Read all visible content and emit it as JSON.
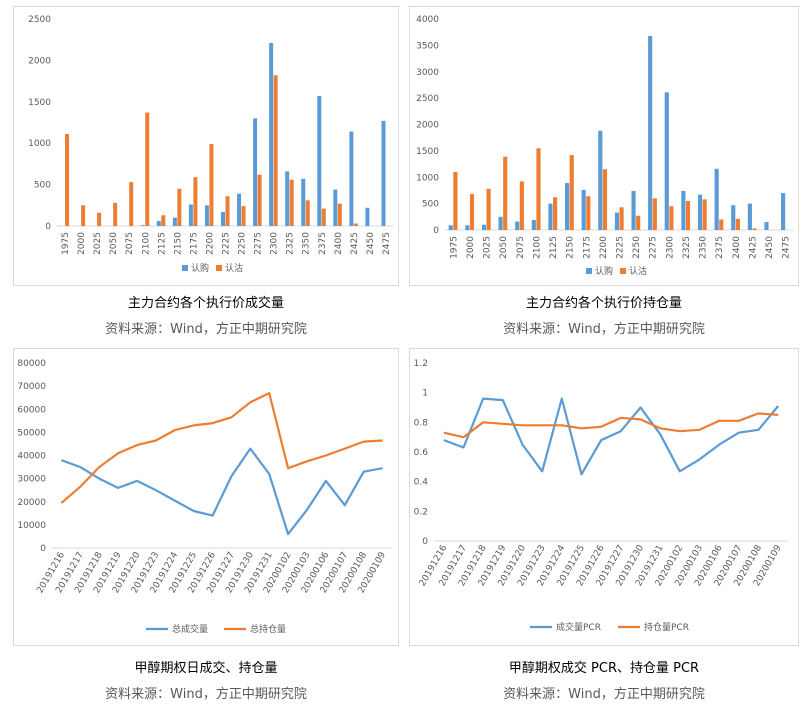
{
  "panels": [
    {
      "caption": "主力合约各个执行价成交量",
      "source": "资料来源：Wind，方正中期研究院"
    },
    {
      "caption": "主力合约各个执行价持仓量",
      "source": "资料来源：Wind，方正中期研究院"
    },
    {
      "caption": "甲醇期权日成交、持仓量",
      "source": "资料来源：Wind，方正中期研究院"
    },
    {
      "caption": "甲醇期权成交 PCR、持仓量 PCR",
      "source": "资料来源：Wind，方正中期研究院"
    }
  ],
  "chart_data": [
    {
      "type": "bar",
      "title": "",
      "categories": [
        "1975",
        "2000",
        "2025",
        "2050",
        "2075",
        "2100",
        "2125",
        "2150",
        "2175",
        "2200",
        "2225",
        "2250",
        "2275",
        "2300",
        "2325",
        "2350",
        "2375",
        "2400",
        "2425",
        "2450",
        "2475"
      ],
      "series": [
        {
          "name": "认购",
          "color": "#5b9bd5",
          "values": [
            0,
            0,
            0,
            0,
            0,
            10,
            60,
            100,
            260,
            250,
            170,
            390,
            1300,
            2210,
            660,
            570,
            1570,
            440,
            1140,
            220,
            1270
          ]
        },
        {
          "name": "认沽",
          "color": "#ed7d31",
          "values": [
            1110,
            250,
            160,
            280,
            530,
            1370,
            130,
            450,
            590,
            990,
            360,
            240,
            620,
            1820,
            560,
            310,
            210,
            270,
            30,
            0,
            0
          ]
        }
      ],
      "ylim": [
        0,
        2500
      ],
      "yticks": [
        "0",
        "500",
        "1000",
        "1500",
        "2000",
        "2500"
      ],
      "legend": "bottom",
      "grid": false
    },
    {
      "type": "bar",
      "title": "",
      "categories": [
        "1975",
        "2000",
        "2025",
        "2050",
        "2075",
        "2100",
        "2125",
        "2150",
        "2175",
        "2200",
        "2225",
        "2250",
        "2275",
        "2300",
        "2325",
        "2350",
        "2375",
        "2400",
        "2425",
        "2450",
        "2475"
      ],
      "series": [
        {
          "name": "认购",
          "color": "#5b9bd5",
          "values": [
            90,
            90,
            100,
            250,
            160,
            190,
            500,
            890,
            760,
            1880,
            330,
            740,
            3680,
            2610,
            740,
            670,
            1160,
            470,
            500,
            150,
            700
          ]
        },
        {
          "name": "认沽",
          "color": "#ed7d31",
          "values": [
            1100,
            680,
            780,
            1390,
            920,
            1550,
            620,
            1420,
            640,
            1150,
            430,
            270,
            600,
            450,
            550,
            580,
            200,
            210,
            30,
            0,
            0
          ]
        }
      ],
      "ylim": [
        0,
        4000
      ],
      "yticks": [
        "0",
        "500",
        "1000",
        "1500",
        "2000",
        "2500",
        "3000",
        "3500",
        "4000"
      ],
      "legend": "bottom",
      "grid": false
    },
    {
      "type": "line",
      "title": "",
      "x": [
        "20191216",
        "20191217",
        "20191218",
        "20191219",
        "20191220",
        "20191223",
        "20191224",
        "20191225",
        "20191226",
        "20191227",
        "20191230",
        "20191231",
        "20200102",
        "20200103",
        "20200106",
        "20200107",
        "20200108",
        "20200109"
      ],
      "series": [
        {
          "name": "总成交量",
          "color": "#5b9bd5",
          "values": [
            38000,
            35000,
            30000,
            26000,
            29000,
            25000,
            20500,
            16000,
            14000,
            31000,
            43000,
            32000,
            6000,
            16500,
            29000,
            18500,
            33000,
            34500
          ]
        },
        {
          "name": "总持仓量",
          "color": "#ed7d31",
          "values": [
            19500,
            26500,
            35000,
            41000,
            44500,
            46500,
            51000,
            53000,
            54000,
            56500,
            63000,
            67000,
            34500,
            37500,
            40000,
            43000,
            46000,
            46500
          ]
        }
      ],
      "ylim": [
        0,
        80000
      ],
      "yticks": [
        "0",
        "10000",
        "20000",
        "30000",
        "40000",
        "50000",
        "60000",
        "70000",
        "80000"
      ],
      "legend": "bottom",
      "grid": false
    },
    {
      "type": "line",
      "title": "",
      "x": [
        "20191216",
        "20191217",
        "20191218",
        "20191219",
        "20191220",
        "20191223",
        "20191224",
        "20191225",
        "20191226",
        "20191227",
        "20191230",
        "20191231",
        "20200102",
        "20200103",
        "20200106",
        "20200107",
        "20200108",
        "20200109"
      ],
      "series": [
        {
          "name": "成交量PCR",
          "color": "#5b9bd5",
          "values": [
            0.68,
            0.63,
            0.96,
            0.95,
            0.65,
            0.47,
            0.96,
            0.45,
            0.68,
            0.74,
            0.9,
            0.72,
            0.47,
            0.55,
            0.65,
            0.73,
            0.75,
            0.91
          ]
        },
        {
          "name": "持仓量PCR",
          "color": "#ed7d31",
          "values": [
            0.73,
            0.7,
            0.8,
            0.79,
            0.78,
            0.78,
            0.78,
            0.76,
            0.77,
            0.83,
            0.82,
            0.76,
            0.74,
            0.75,
            0.81,
            0.81,
            0.86,
            0.85
          ]
        }
      ],
      "ylim": [
        0,
        1.2
      ],
      "yticks": [
        "0",
        "0.2",
        "0.4",
        "0.6",
        "0.8",
        "1",
        "1.2"
      ],
      "legend": "bottom",
      "grid": false
    }
  ]
}
